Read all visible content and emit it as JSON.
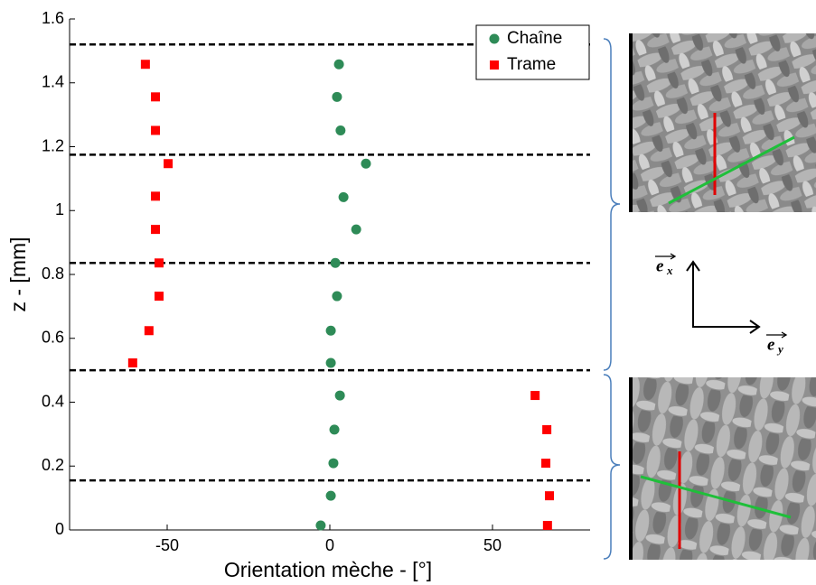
{
  "chart_data": {
    "type": "scatter",
    "xlabel": "Orientation mèche  - [°]",
    "ylabel": "z - [mm]",
    "xlim": [
      -80,
      80
    ],
    "ylim": [
      0,
      1.6
    ],
    "xticks": [
      -50,
      0,
      50
    ],
    "yticks": [
      0,
      0.2,
      0.4,
      0.6,
      0.8,
      1,
      1.2,
      1.4,
      1.6
    ],
    "dashed_lines": [
      1.52,
      1.175,
      0.836,
      0.5,
      0.155
    ],
    "series": [
      {
        "name": "Chaîne",
        "color": "#2e8b57",
        "marker": "circle",
        "x": [
          2.8,
          2.2,
          3.3,
          11.1,
          4.2,
          8.1,
          1.7,
          2.2,
          0.3,
          0.3,
          3.1,
          1.4,
          1.1,
          0.3,
          -2.8
        ],
        "values": [
          1.458,
          1.356,
          1.251,
          1.147,
          1.042,
          0.941,
          0.836,
          0.732,
          0.624,
          0.523,
          0.421,
          0.314,
          0.209,
          0.107,
          0.014
        ]
      },
      {
        "name": "Trame",
        "color": "#ff0000",
        "marker": "square",
        "x": [
          -56.7,
          -53.6,
          -53.6,
          -49.7,
          -53.6,
          -53.6,
          -52.5,
          -52.5,
          -55.6,
          -60.6,
          63.1,
          66.7,
          66.4,
          67.5,
          66.9
        ],
        "values": [
          1.458,
          1.356,
          1.251,
          1.147,
          1.045,
          0.941,
          0.836,
          0.732,
          0.624,
          0.523,
          0.421,
          0.314,
          0.209,
          0.107,
          0.014
        ]
      }
    ]
  },
  "frame": {
    "x_vector": "e",
    "x_sub": "x",
    "y_vector": "e",
    "y_sub": "y"
  }
}
